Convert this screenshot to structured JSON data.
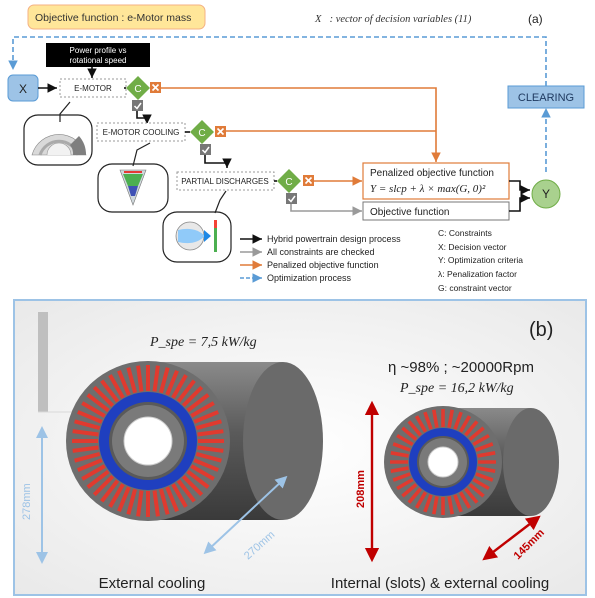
{
  "panel_a": {
    "label": "(a)",
    "objective_title": "Objective function : e-Motor mass",
    "decision_vector_caption": "X⃗: vector of decision variables (11)",
    "nodes": {
      "x": "X",
      "y": "Y",
      "clearing": "CLEARING",
      "power_profile_line1": "Power profile vs",
      "power_profile_line2": "rotational speed",
      "emotor": "E-MOTOR",
      "emotor_cooling": "E-MOTOR COOLING",
      "partial_discharges": "PARTIAL DISCHARGES",
      "constraint_c": "C",
      "penalized_title": "Penalized objective function",
      "penalized_formula": "Y = slcp + λ × max(G, 0)²",
      "objective_function": "Objective function"
    },
    "legend": [
      {
        "label": "Hybrid powertrain design process",
        "color": "#111111",
        "style": "solid"
      },
      {
        "label": "All constraints are checked",
        "color": "#9a9a9a",
        "style": "solid"
      },
      {
        "label": "Penalized objective function",
        "color": "#e07b39",
        "style": "solid"
      },
      {
        "label": "Optimization process",
        "color": "#5a9bd5",
        "style": "dashed"
      }
    ],
    "definitions": [
      "C: Constraints",
      "X: Decision vector",
      "Y: Optimization criteria",
      "λ: Penalization factor",
      "G: constraint vector"
    ]
  },
  "panel_b": {
    "label": "(b)",
    "left_pspe": "P_spe = 7,5 kW/kg",
    "left_height": "278mm",
    "left_length": "270mm",
    "left_caption": "External cooling",
    "right_eff": "η ~98% ; ~20000Rpm",
    "right_pspe": "P_spe = 16,2 kW/kg",
    "right_height": "208mm",
    "right_length": "145mm",
    "right_caption": "Internal (slots) & external cooling"
  },
  "colors": {
    "green_diamond": "#70ad47",
    "orange": "#e07b39",
    "blue_dash": "#5a9bd5",
    "node_blue": "#9dc3e6",
    "title_yellow": "#ffe699",
    "stator_red": "#e03a2f",
    "winding_blue": "#1f3fbf",
    "dim_blue": "#9dc3e6",
    "dim_red": "#c00000"
  }
}
